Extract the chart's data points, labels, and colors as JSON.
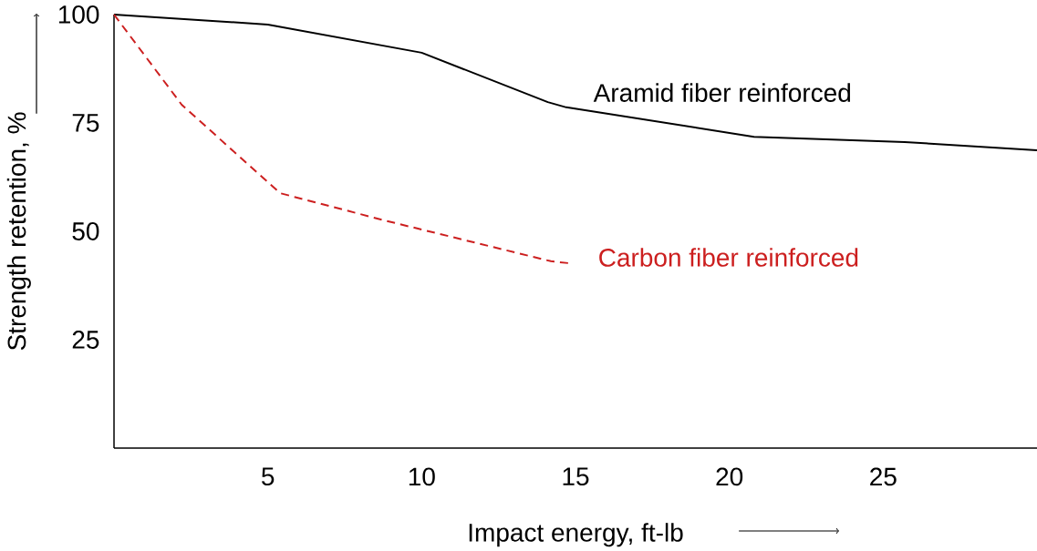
{
  "chart_data": {
    "type": "line",
    "xlabel": "Impact energy, ft-lb",
    "ylabel": "Strength retention, %",
    "xlim": [
      0,
      30
    ],
    "ylim": [
      0,
      100
    ],
    "xticks": [
      5,
      10,
      15,
      20,
      25
    ],
    "yticks": [
      25,
      50,
      75,
      100
    ],
    "grid": false,
    "legend": false,
    "marker": "none",
    "series": [
      {
        "name": "Aramid fiber reinforced",
        "color": "#000000",
        "line_style": "solid",
        "x": [
          0,
          5,
          10,
          14.1,
          14.7,
          20.8,
          25.7,
          30
        ],
        "values": [
          100,
          97.7,
          91.2,
          79.8,
          78.6,
          71.8,
          70.6,
          68.7
        ]
      },
      {
        "name": "Carbon fiber reinforced",
        "color": "#cc1f1f",
        "line_style": "dashed",
        "x": [
          0,
          2.2,
          5.4,
          8.8,
          14.2,
          14.85
        ],
        "values": [
          100,
          79.2,
          58.8,
          52.5,
          43.1,
          42.6
        ]
      }
    ]
  }
}
